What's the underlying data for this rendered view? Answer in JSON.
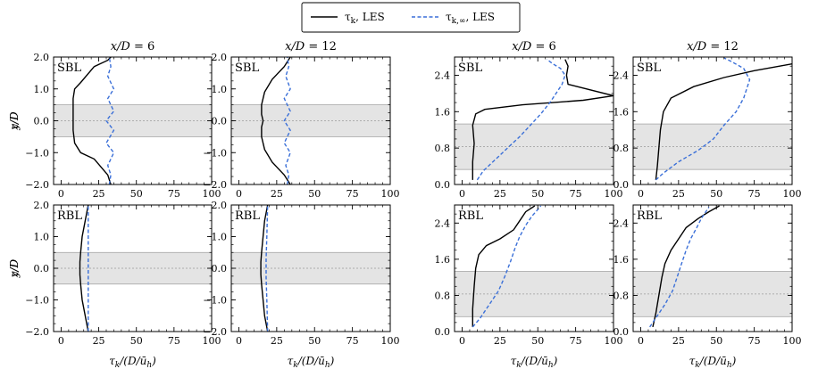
{
  "legend": {
    "entries": [
      {
        "label": "τ_k, LES",
        "color": "#000000",
        "dash": "solid"
      },
      {
        "label": "τ_k,∞, LES",
        "color": "#3a6fd8",
        "dash": "dashed"
      }
    ]
  },
  "chart_data": [
    {
      "type": "line",
      "title": "x/D = 6",
      "badge": "SBL",
      "xlabel": "",
      "ylabel": "y/D",
      "xlim": [
        -5,
        100
      ],
      "ylim": [
        -2,
        2
      ],
      "xticks": [
        0,
        25,
        50,
        75,
        100
      ],
      "yticks": [
        -2,
        -1,
        0,
        1,
        2
      ],
      "band": [
        -0.5,
        0.5
      ],
      "dotted_lines": [
        0
      ],
      "series": [
        {
          "name": "τ_k, LES",
          "x": [
            33,
            31,
            22,
            13,
            9,
            8,
            8,
            8,
            8,
            9,
            13,
            22,
            31,
            33
          ],
          "y": [
            -2,
            -1.7,
            -1.2,
            -1.0,
            -0.7,
            -0.3,
            0,
            0.3,
            0.7,
            1.0,
            1.2,
            1.7,
            1.9,
            2
          ]
        },
        {
          "name": "τ_k,∞, LES",
          "x": [
            32,
            33,
            31,
            35,
            30,
            35,
            30,
            35,
            31,
            35,
            31,
            33,
            32
          ],
          "y": [
            -2,
            -1.7,
            -1.4,
            -1.0,
            -0.7,
            -0.3,
            0,
            0.3,
            0.7,
            1.0,
            1.4,
            1.7,
            2
          ]
        }
      ]
    },
    {
      "type": "line",
      "title": "x/D = 12",
      "badge": "SBL",
      "xlabel": "",
      "ylabel": "",
      "xlim": [
        -5,
        100
      ],
      "ylim": [
        -2,
        2
      ],
      "xticks": [
        0,
        25,
        50,
        75,
        100
      ],
      "yticks": [
        -2,
        -1,
        0,
        1,
        2
      ],
      "band": [
        -0.5,
        0.5
      ],
      "dotted_lines": [
        0
      ],
      "series": [
        {
          "name": "τ_k, LES",
          "x": [
            34,
            30,
            22,
            17,
            15,
            15,
            16,
            15,
            15,
            17,
            22,
            30,
            34
          ],
          "y": [
            -2,
            -1.7,
            -1.3,
            -0.9,
            -0.5,
            -0.2,
            0,
            0.2,
            0.5,
            0.9,
            1.3,
            1.7,
            2
          ]
        },
        {
          "name": "τ_k,∞, LES",
          "x": [
            32,
            33,
            31,
            34,
            30,
            34,
            30,
            34,
            30,
            34,
            31,
            33,
            32
          ],
          "y": [
            -2,
            -1.7,
            -1.4,
            -1.0,
            -0.7,
            -0.3,
            0,
            0.3,
            0.7,
            1.0,
            1.4,
            1.7,
            2
          ]
        }
      ]
    },
    {
      "type": "line",
      "title": "x/D = 6",
      "badge": "SBL",
      "xlabel": "",
      "ylabel": "z/D",
      "xlim": [
        -5,
        100
      ],
      "ylim": [
        0,
        2.8
      ],
      "xticks": [
        0,
        25,
        50,
        75,
        100
      ],
      "yticks": [
        0.0,
        0.8,
        1.6,
        2.4
      ],
      "band": [
        0.33,
        1.33
      ],
      "dotted_lines": [
        0.83
      ],
      "series": [
        {
          "name": "τ_k, LES",
          "x": [
            7,
            7,
            8,
            7,
            9,
            15,
            40,
            80,
            100,
            70,
            69,
            70,
            68
          ],
          "y": [
            0.1,
            0.5,
            0.9,
            1.3,
            1.55,
            1.65,
            1.75,
            1.85,
            1.95,
            2.2,
            2.4,
            2.6,
            2.75
          ]
        },
        {
          "name": "τ_k,∞, LES",
          "x": [
            10,
            14,
            22,
            30,
            38,
            45,
            52,
            58,
            62,
            66,
            68,
            65,
            60,
            56
          ],
          "y": [
            0.1,
            0.3,
            0.55,
            0.8,
            1.05,
            1.3,
            1.55,
            1.8,
            2.0,
            2.2,
            2.4,
            2.55,
            2.65,
            2.75
          ]
        }
      ]
    },
    {
      "type": "line",
      "title": "x/D = 12",
      "badge": "SBL",
      "xlabel": "",
      "ylabel": "",
      "xlim": [
        -5,
        100
      ],
      "ylim": [
        0,
        2.8
      ],
      "xticks": [
        0,
        25,
        50,
        75,
        100
      ],
      "yticks": [
        0.0,
        0.8,
        1.6,
        2.4
      ],
      "band": [
        0.33,
        1.33
      ],
      "dotted_lines": [
        0.83
      ],
      "series": [
        {
          "name": "τ_k, LES",
          "x": [
            10,
            11,
            12,
            13,
            15,
            20,
            35,
            55,
            75,
            100
          ],
          "y": [
            0.1,
            0.4,
            0.8,
            1.2,
            1.6,
            1.9,
            2.15,
            2.35,
            2.5,
            2.65
          ]
        },
        {
          "name": "τ_k,∞, LES",
          "x": [
            10,
            15,
            25,
            38,
            48,
            55,
            63,
            68,
            72,
            68,
            60,
            55
          ],
          "y": [
            0.1,
            0.25,
            0.5,
            0.75,
            1.0,
            1.3,
            1.6,
            1.9,
            2.3,
            2.55,
            2.7,
            2.78
          ]
        }
      ]
    },
    {
      "type": "line",
      "title": "",
      "badge": "RBL",
      "xlabel": "τ_k/(D/ū_h)",
      "ylabel": "y/D",
      "xlim": [
        -5,
        100
      ],
      "ylim": [
        -2,
        2
      ],
      "xticks": [
        0,
        25,
        50,
        75,
        100
      ],
      "yticks": [
        -2,
        -1,
        0,
        1,
        2
      ],
      "band": [
        -0.5,
        0.5
      ],
      "dotted_lines": [
        0
      ],
      "series": [
        {
          "name": "τ_k, LES",
          "x": [
            18,
            16,
            14,
            13,
            12.5,
            12.5,
            13,
            14,
            16,
            18
          ],
          "y": [
            -2,
            -1.5,
            -1,
            -0.5,
            -0.2,
            0.2,
            0.5,
            1,
            1.5,
            2
          ]
        },
        {
          "name": "τ_k,∞, LES",
          "x": [
            18,
            18,
            18,
            18,
            18
          ],
          "y": [
            -2,
            -1,
            0,
            1,
            2
          ]
        }
      ]
    },
    {
      "type": "line",
      "title": "",
      "badge": "RBL",
      "xlabel": "τ_k/(D/ū_h)",
      "ylabel": "",
      "xlim": [
        -5,
        100
      ],
      "ylim": [
        -2,
        2
      ],
      "xticks": [
        0,
        25,
        50,
        75,
        100
      ],
      "yticks": [
        -2,
        -1,
        0,
        1,
        2
      ],
      "band": [
        -0.5,
        0.5
      ],
      "dotted_lines": [
        0
      ],
      "series": [
        {
          "name": "τ_k, LES",
          "x": [
            19,
            17,
            16,
            15,
            14.5,
            14.5,
            15,
            16,
            17,
            19
          ],
          "y": [
            -2,
            -1.5,
            -1,
            -0.5,
            -0.2,
            0.2,
            0.5,
            1,
            1.5,
            2
          ]
        },
        {
          "name": "τ_k,∞, LES",
          "x": [
            19,
            18.5,
            18,
            18,
            18.5,
            19
          ],
          "y": [
            -2,
            -1,
            -0.3,
            0.3,
            1,
            2
          ]
        }
      ]
    },
    {
      "type": "line",
      "title": "",
      "badge": "RBL",
      "xlabel": "τ_k/(D/ū_h)",
      "ylabel": "z/D",
      "xlim": [
        -5,
        100
      ],
      "ylim": [
        0,
        2.8
      ],
      "xticks": [
        0,
        25,
        50,
        75,
        100
      ],
      "yticks": [
        0.0,
        0.8,
        1.6,
        2.4
      ],
      "band": [
        0.33,
        1.33
      ],
      "dotted_lines": [
        0.83
      ],
      "series": [
        {
          "name": "τ_k, LES",
          "x": [
            7,
            7,
            8,
            9,
            11,
            16,
            25,
            34,
            38,
            42,
            48
          ],
          "y": [
            0.1,
            0.5,
            1.0,
            1.4,
            1.7,
            1.9,
            2.05,
            2.25,
            2.45,
            2.65,
            2.78
          ]
        },
        {
          "name": "τ_k,∞, LES",
          "x": [
            7,
            12,
            18,
            24,
            28,
            32,
            35,
            38,
            42,
            46,
            50,
            52
          ],
          "y": [
            0.1,
            0.3,
            0.6,
            0.9,
            1.2,
            1.55,
            1.85,
            2.1,
            2.35,
            2.55,
            2.7,
            2.78
          ]
        }
      ]
    },
    {
      "type": "line",
      "title": "",
      "badge": "RBL",
      "xlabel": "τ_k/(D/ū_h)",
      "ylabel": "",
      "xlim": [
        -5,
        100
      ],
      "ylim": [
        0,
        2.8
      ],
      "xticks": [
        0,
        25,
        50,
        75,
        100
      ],
      "yticks": [
        0.0,
        0.8,
        1.6,
        2.4
      ],
      "band": [
        0.33,
        1.33
      ],
      "dotted_lines": [
        0.83
      ],
      "series": [
        {
          "name": "τ_k, LES",
          "x": [
            8,
            10,
            12,
            14,
            16,
            20,
            25,
            30,
            38,
            45,
            52
          ],
          "y": [
            0.1,
            0.4,
            0.8,
            1.2,
            1.5,
            1.8,
            2.05,
            2.3,
            2.5,
            2.65,
            2.78
          ]
        },
        {
          "name": "τ_k,∞, LES",
          "x": [
            6,
            10,
            16,
            21,
            24,
            27,
            30,
            33,
            37,
            40,
            43,
            45
          ],
          "y": [
            0.1,
            0.3,
            0.6,
            0.9,
            1.2,
            1.5,
            1.8,
            2.05,
            2.3,
            2.5,
            2.65,
            2.75
          ]
        }
      ]
    }
  ]
}
